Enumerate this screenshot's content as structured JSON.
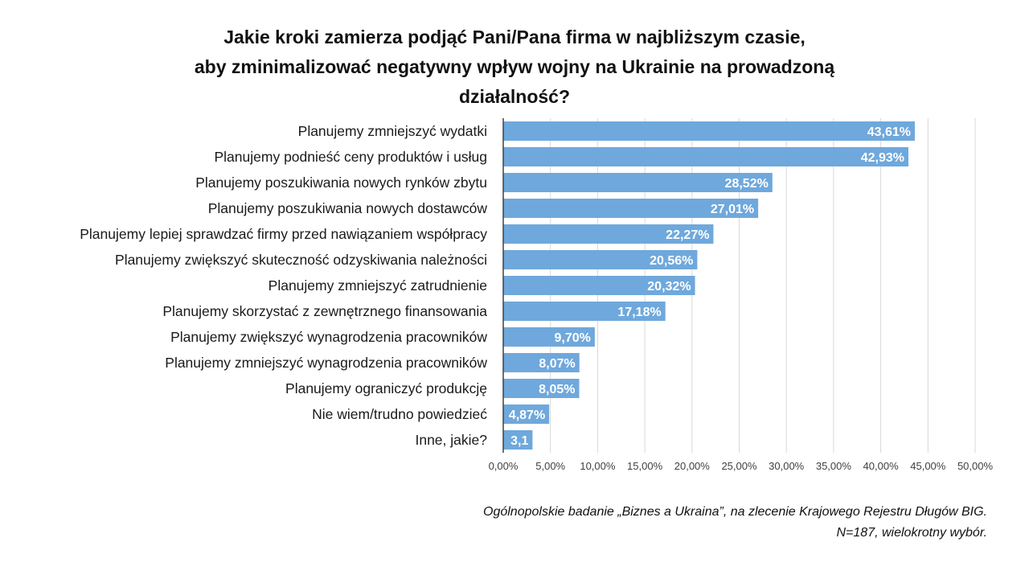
{
  "chart_data": {
    "type": "bar",
    "orientation": "horizontal",
    "title_lines": [
      "Jakie kroki zamierza podjąć Pani/Pana  firma w najbliższym czasie,",
      "aby zminimalizować negatywny wpływ wojny na Ukrainie na prowadzoną",
      "działalność?"
    ],
    "categories": [
      "Planujemy zmniejszyć wydatki",
      "Planujemy podnieść ceny produktów i usług",
      "Planujemy poszukiwania nowych rynków zbytu",
      "Planujemy poszukiwania nowych dostawców",
      "Planujemy lepiej sprawdzać firmy przed nawiązaniem współpracy",
      "Planujemy zwiększyć skuteczność odzyskiwania należności",
      "Planujemy zmniejszyć zatrudnienie",
      "Planujemy skorzystać z zewnętrznego finansowania",
      "Planujemy zwiększyć wynagrodzenia pracowników",
      "Planujemy zmniejszyć wynagrodzenia pracowników",
      "Planujemy ograniczyć produkcję",
      "Nie wiem/trudno powiedzieć",
      "Inne, jakie?"
    ],
    "values": [
      43.61,
      42.93,
      28.52,
      27.01,
      22.27,
      20.56,
      20.32,
      17.18,
      9.7,
      8.07,
      8.05,
      4.87,
      3.1
    ],
    "data_labels": [
      "43,61%",
      "42,93%",
      "28,52%",
      "27,01%",
      "22,27%",
      "20,56%",
      "20,32%",
      "17,18%",
      "9,70%",
      "8,07%",
      "8,05%",
      "4,87%",
      "3,1"
    ],
    "x_ticks": [
      0,
      5,
      10,
      15,
      20,
      25,
      30,
      35,
      40,
      45,
      50
    ],
    "x_tick_labels": [
      "0,00%",
      "5,00%",
      "10,00%",
      "15,00%",
      "20,00%",
      "25,00%",
      "30,00%",
      "35,00%",
      "40,00%",
      "45,00%",
      "50,00%"
    ],
    "xlim": [
      0,
      50
    ],
    "grid": true,
    "bar_color": "#6fa8dc",
    "label_color": "#ffffff"
  },
  "source_lines": [
    "Ogólnopolskie badanie „Biznes a Ukraina”, na zlecenie Krajowego Rejestru Długów BIG.",
    "N=187, wielokrotny wybór."
  ]
}
